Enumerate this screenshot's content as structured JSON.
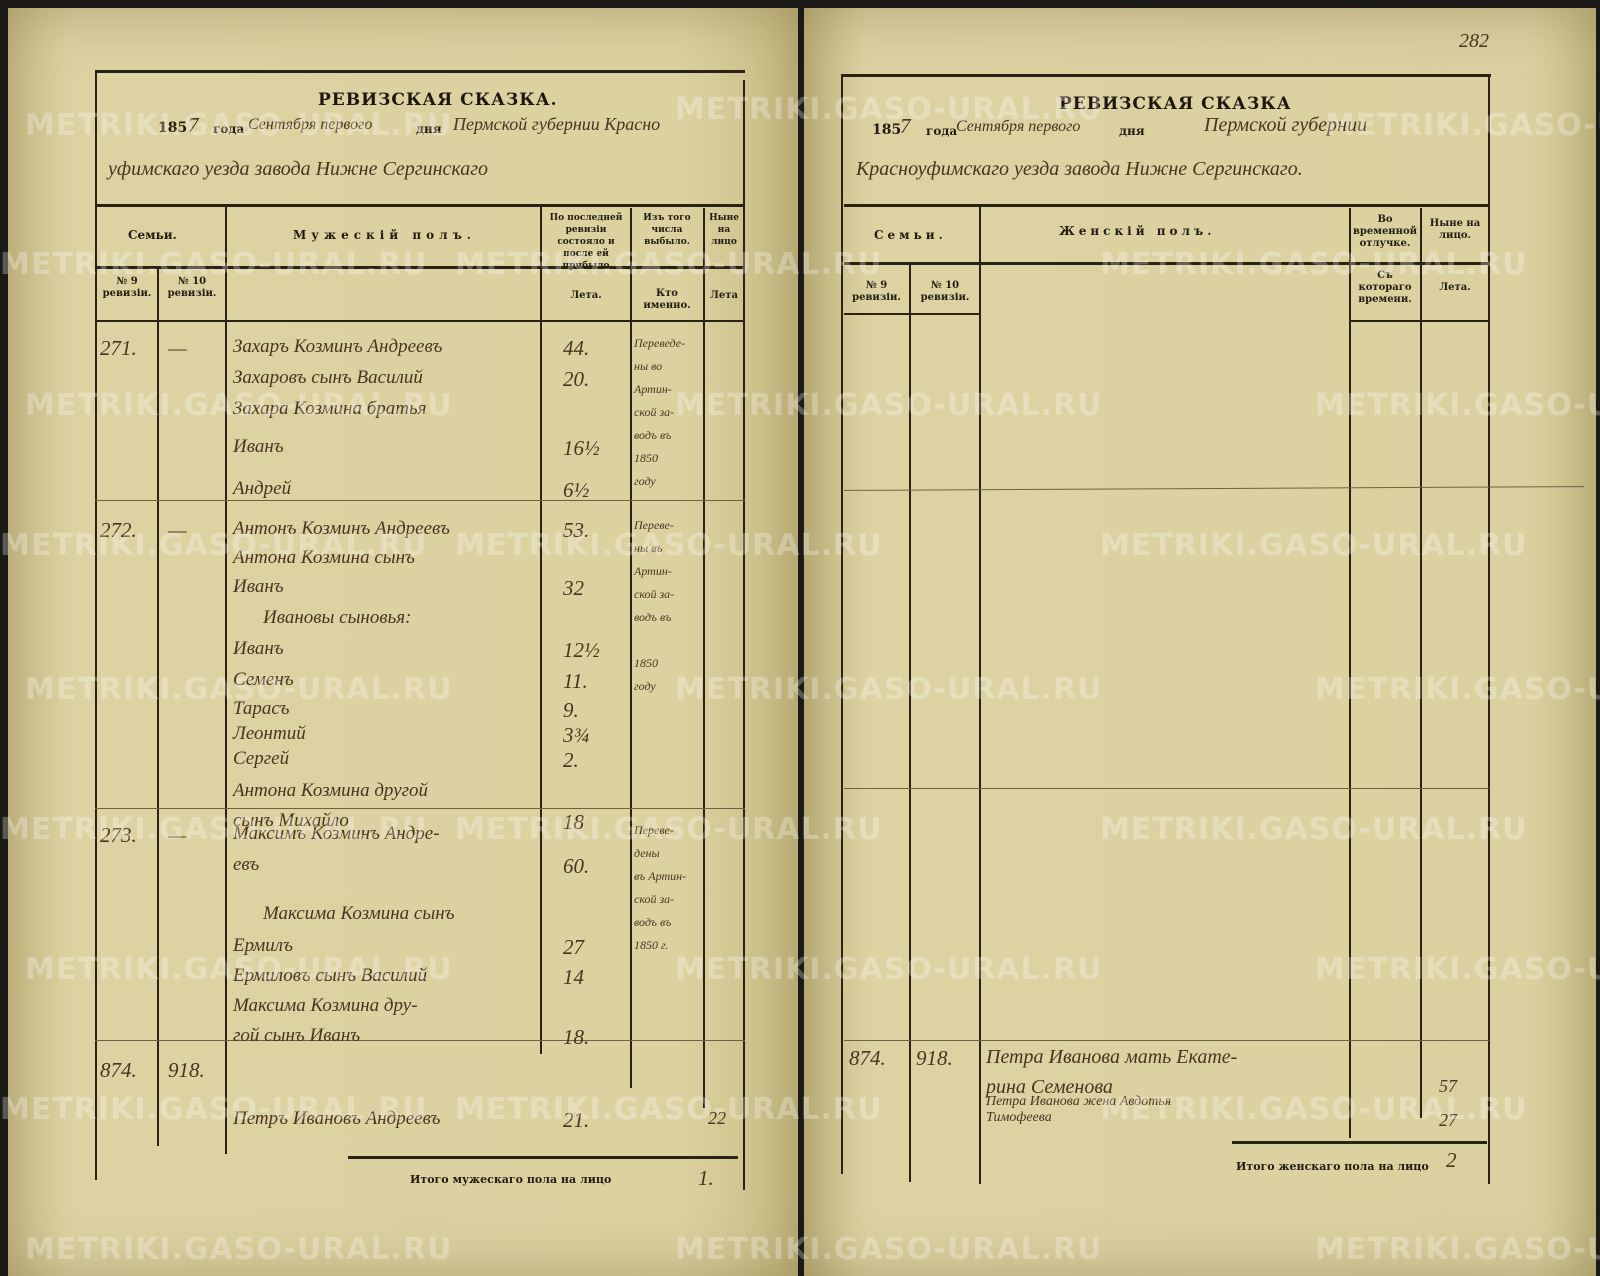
{
  "page_number": "282",
  "watermark": "METRIKI.GASO-URAL.RU",
  "left_page": {
    "title": "РЕВИЗСКАЯ СКАЗКА.",
    "year_printed": "185",
    "year_hand": "7",
    "year_label": "года",
    "date_hand": "Сентября первого",
    "day_label": "дня",
    "place_hand_1": "Пермской губернии Красно",
    "place_hand_2": "уфимскаго уезда завода Нижне Сергинскаго",
    "headers": {
      "families": "Семьи.",
      "gender": "Мужескій полъ.",
      "last_revision": "По последней ревизіи состояло и после ей прибыло",
      "departed": "Изъ того числа выбыло.",
      "present": "Ныне на лицо",
      "rev9": "№ 9 ревизіи.",
      "rev10": "№ 10 ревизіи.",
      "age": "Лета.",
      "when": "Кто именно.",
      "age2": "Лета"
    },
    "families": [
      {
        "rev9": "271.",
        "rev10": "—",
        "remark": [
          "Переведе-",
          "ны во",
          "Артин-",
          "ской за-",
          "водъ въ",
          "1850",
          "году"
        ],
        "lines": [
          {
            "name": "Захаръ Козминъ Андреевъ",
            "age": "44."
          },
          {
            "name": "Захаровъ сынъ Василий",
            "age": "20."
          },
          {
            "name": "Захара Козмина братья",
            "age": ""
          },
          {
            "name": "Иванъ",
            "age": "16½"
          },
          {
            "name": "Андрей",
            "age": "6½"
          }
        ]
      },
      {
        "rev9": "272.",
        "rev10": "—",
        "remark": [
          "Переве-",
          "ны въ",
          "Артин-",
          "ской за-",
          "водъ въ",
          "",
          "1850",
          "году"
        ],
        "lines": [
          {
            "name": "Антонъ Козминъ Андреевъ",
            "age": "53."
          },
          {
            "name": "Антона Козмина сынъ",
            "age": ""
          },
          {
            "name": "Иванъ",
            "age": "32"
          },
          {
            "name": "Ивановы сыновья:",
            "age": ""
          },
          {
            "name": "Иванъ",
            "age": "12½"
          },
          {
            "name": "Семенъ",
            "age": "11."
          },
          {
            "name": "Тарасъ",
            "age": "9."
          },
          {
            "name": "Леонтий",
            "age": "3¾"
          },
          {
            "name": "Сергей",
            "age": "2."
          },
          {
            "name": "Антона Козмина другой",
            "age": ""
          },
          {
            "name": "сынъ Михайло",
            "age": "18"
          }
        ]
      },
      {
        "rev9": "273.",
        "rev10": "—",
        "remark": [
          "Переве-",
          "дены",
          "въ Артин-",
          "ской за-",
          "водъ въ",
          "1850 г."
        ],
        "lines": [
          {
            "name": "Максимъ Козминъ Андре-",
            "age": ""
          },
          {
            "name": "евъ",
            "age": "60."
          },
          {
            "name": "Максима Козмина сынъ",
            "age": ""
          },
          {
            "name": "Ермилъ",
            "age": "27"
          },
          {
            "name": "Ермиловъ сынъ Василий",
            "age": "14"
          },
          {
            "name": "Максима Козмина дру-",
            "age": ""
          },
          {
            "name": "гой сынъ Иванъ",
            "age": "18."
          }
        ]
      },
      {
        "rev9": "874.",
        "rev10": "918.",
        "remark": [],
        "present_age": "22",
        "lines": [
          {
            "name": "Петръ Ивановъ Андреевъ",
            "age": "21."
          }
        ]
      }
    ],
    "total_label": "Итого мужескаго пола на лицо",
    "total_value": "1."
  },
  "right_page": {
    "title": "РЕВИЗСКАЯ СКАЗКА",
    "year_printed": "185",
    "year_hand": "7",
    "year_label": "года",
    "date_hand": "Сентября первого",
    "day_label": "дня",
    "place_hand_1": "Пермской губернии",
    "place_hand_2": "Красноуфимскаго уезда завода Нижне Сергинскаго.",
    "headers": {
      "families": "Семьи.",
      "gender": "Женскій полъ.",
      "absence": "Во временной отлучке.",
      "present": "Ныне на лицо.",
      "rev9": "№ 9 ревизіи.",
      "rev10": "№ 10 ревизіи.",
      "since": "Съ котораго времени.",
      "age": "Лета."
    },
    "families": [
      {
        "rev9": "874.",
        "rev10": "918.",
        "lines": [
          {
            "name": "Петра Иванова мать Екате-",
            "age": ""
          },
          {
            "name": "рина Семенова",
            "age": "57"
          },
          {
            "name": "Петра Иванова жена Авдотья",
            "age": ""
          },
          {
            "name": "Тимофеева",
            "age": "27"
          }
        ]
      }
    ],
    "total_label": "Итого женскаго пола на лицо",
    "total_value": "2"
  }
}
